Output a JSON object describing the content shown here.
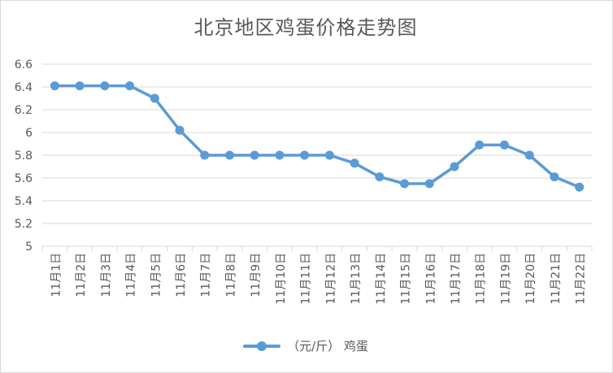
{
  "chart_data": {
    "type": "line",
    "title": "北京地区鸡蛋价格走势图",
    "categories": [
      "11月1日",
      "11月2日",
      "11月3日",
      "11月4日",
      "11月5日",
      "11月6日",
      "11月7日",
      "11月8日",
      "11月9日",
      "11月10日",
      "11月11日",
      "11月12日",
      "11月13日",
      "11月14日",
      "11月15日",
      "11月16日",
      "11月17日",
      "11月18日",
      "11月19日",
      "11月20日",
      "11月21日",
      "11月22日"
    ],
    "series": [
      {
        "name": "（元/斤） 鸡蛋",
        "color": "#5b9bd5",
        "values": [
          6.41,
          6.41,
          6.41,
          6.41,
          6.3,
          6.02,
          5.8,
          5.8,
          5.8,
          5.8,
          5.8,
          5.8,
          5.73,
          5.61,
          5.55,
          5.55,
          5.7,
          5.89,
          5.89,
          5.8,
          5.61,
          5.52
        ]
      }
    ],
    "ylim": [
      5,
      6.6
    ],
    "yticks": [
      "5",
      "5.2",
      "5.4",
      "5.6",
      "5.8",
      "6",
      "6.2",
      "6.4",
      "6.6"
    ],
    "grid": true,
    "legend_position": "bottom"
  }
}
